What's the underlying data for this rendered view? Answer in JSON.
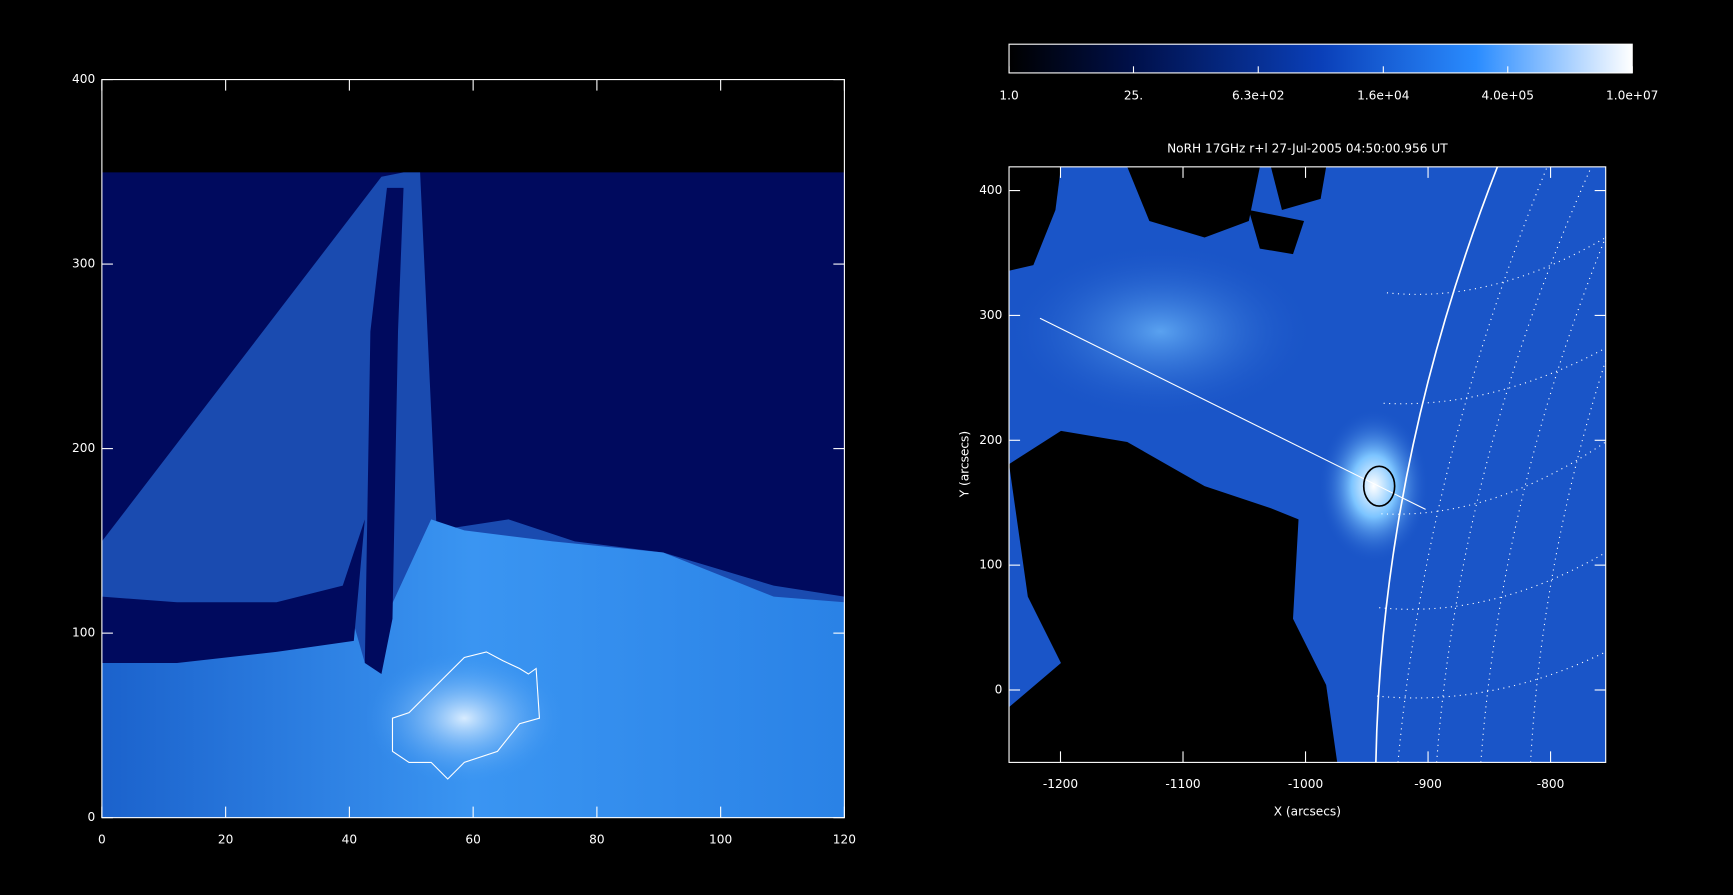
{
  "chart_data": [
    {
      "type": "heatmap",
      "xlim": [
        0,
        120
      ],
      "ylim": [
        0,
        400
      ],
      "xticks": [
        0,
        20,
        40,
        60,
        80,
        100,
        120
      ],
      "yticks": [
        0,
        100,
        200,
        300,
        400
      ]
    },
    {
      "type": "heatmap",
      "title": "NoRH 17GHz r+l 27-Jul-2005 04:50:00.956 UT",
      "xlabel": "X (arcsecs)",
      "ylabel": "Y (arcsecs)",
      "xlim": [
        -1242,
        -755
      ],
      "ylim": [
        -58,
        419
      ],
      "xticks": [
        -1200,
        -1100,
        -1000,
        -900,
        -800
      ],
      "yticks": [
        0,
        100,
        200,
        300,
        400
      ],
      "colorbar": {
        "scale": "log",
        "lim": [
          1,
          10000000
        ],
        "ticks": [
          {
            "value": 1,
            "label": "1.0"
          },
          {
            "value": 25,
            "label": "25."
          },
          {
            "value": 630,
            "label": "6.3e+02"
          },
          {
            "value": 16000,
            "label": "1.6e+04"
          },
          {
            "value": 400000,
            "label": "4.0e+05"
          },
          {
            "value": 10000000,
            "label": "1.0e+07"
          }
        ]
      }
    }
  ]
}
